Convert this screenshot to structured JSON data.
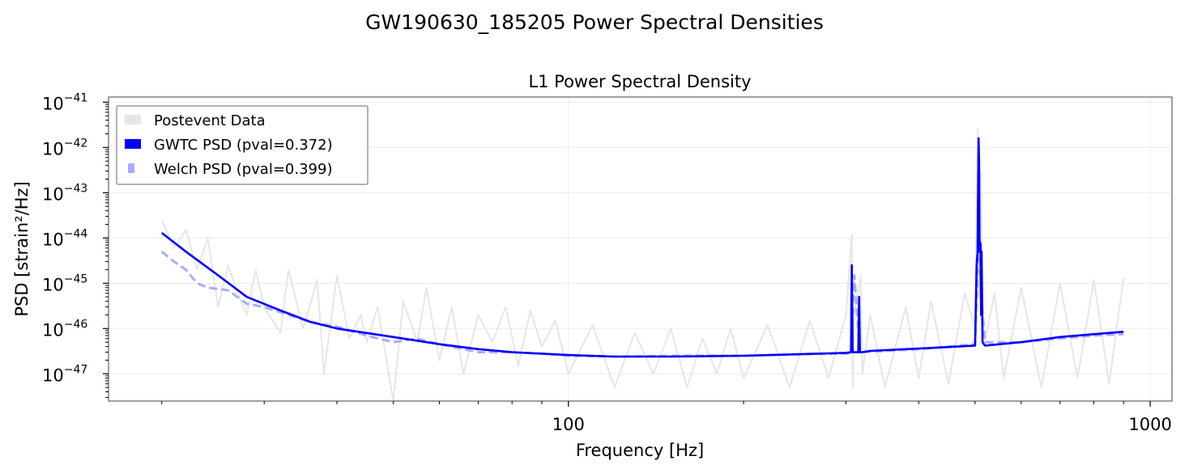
{
  "figure": {
    "suptitle": "GW190630_185205 Power Spectral Densities"
  },
  "chart_data": {
    "type": "line",
    "title": "L1 Power Spectral Density",
    "xlabel": "Frequency [Hz]",
    "ylabel": "PSD [strain²/Hz]",
    "xscale": "log",
    "yscale": "log",
    "xlim": [
      16.2,
      1090
    ],
    "ylim": [
      2.5e-48,
      1.3e-41
    ],
    "grid": true,
    "legend_position": "top-left",
    "x_ticks": [
      {
        "value": 100,
        "label": "100"
      },
      {
        "value": 1000,
        "label": "1000"
      }
    ],
    "y_ticks": [
      {
        "value": 1e-47,
        "base": "10",
        "exp": "−47"
      },
      {
        "value": 1e-46,
        "base": "10",
        "exp": "−46"
      },
      {
        "value": 1e-45,
        "base": "10",
        "exp": "−45"
      },
      {
        "value": 1e-44,
        "base": "10",
        "exp": "−44"
      },
      {
        "value": 1e-43,
        "base": "10",
        "exp": "−43"
      },
      {
        "value": 1e-42,
        "base": "10",
        "exp": "−42"
      },
      {
        "value": 1e-41,
        "base": "10",
        "exp": "−41"
      }
    ],
    "series": [
      {
        "name": "Postevent Data",
        "color": "#e6e6e6",
        "style": "solid",
        "x": [
          20,
          21,
          22,
          23,
          24,
          25,
          26,
          27,
          28,
          29,
          30,
          32,
          33,
          35,
          37,
          38,
          40,
          42,
          44,
          45,
          47,
          50,
          52,
          55,
          57,
          60,
          63,
          66,
          70,
          74,
          78,
          82,
          86,
          90,
          95,
          100,
          110,
          120,
          130,
          140,
          150,
          160,
          170,
          180,
          190,
          200,
          220,
          240,
          260,
          280,
          300,
          307,
          308,
          310,
          318,
          320,
          330,
          350,
          380,
          400,
          420,
          450,
          480,
          500,
          505,
          508,
          512,
          515,
          520,
          540,
          560,
          600,
          650,
          700,
          750,
          800,
          850,
          900
        ],
        "y": [
          2.5e-44,
          6e-45,
          1.5e-44,
          2e-45,
          1e-44,
          3e-46,
          2.5e-45,
          6e-46,
          2e-46,
          2e-45,
          3e-46,
          8e-47,
          2e-45,
          1e-46,
          1.2e-45,
          1e-47,
          1.5e-45,
          6e-47,
          2e-46,
          5e-47,
          3e-46,
          2.5e-48,
          4e-46,
          5e-47,
          8e-46,
          2e-47,
          3e-46,
          1e-47,
          2e-46,
          5e-47,
          3e-46,
          1.5e-47,
          2.5e-46,
          4e-47,
          1.5e-46,
          1e-47,
          1.2e-46,
          5e-48,
          8e-47,
          1e-47,
          1e-46,
          5e-48,
          6e-47,
          1e-47,
          1e-46,
          8e-48,
          1.2e-46,
          5e-48,
          1.5e-46,
          8e-48,
          2e-46,
          1.2e-44,
          5e-48,
          2e-46,
          1.5e-45,
          1e-47,
          2e-46,
          5e-48,
          3e-46,
          8e-48,
          4e-46,
          6e-48,
          6e-46,
          1e-46,
          2.5e-42,
          5e-46,
          3e-43,
          2e-46,
          5e-47,
          6e-46,
          8e-48,
          8e-46,
          5e-48,
          1e-45,
          8e-48,
          1.2e-45,
          6e-48,
          1.3e-45
        ]
      },
      {
        "name": "GWTC PSD (pval=0.372)",
        "color": "#0000ff",
        "style": "solid",
        "x": [
          20,
          22,
          25,
          28,
          32,
          36,
          40,
          50,
          60,
          70,
          80,
          100,
          120,
          150,
          200,
          250,
          300,
          306,
          307,
          308,
          309,
          315,
          316,
          317,
          318,
          319,
          330,
          400,
          500,
          503,
          505,
          507,
          508,
          509,
          510,
          511,
          512,
          513,
          515,
          520,
          600,
          700,
          800,
          900
        ],
        "y": [
          1.3e-44,
          5e-45,
          1.5e-45,
          5e-46,
          2.5e-46,
          1.4e-46,
          1e-46,
          6.5e-47,
          4.5e-47,
          3.5e-47,
          3e-47,
          2.6e-47,
          2.4e-47,
          2.4e-47,
          2.5e-47,
          2.7e-47,
          2.9e-47,
          3e-47,
          2.5e-45,
          3e-47,
          3e-47,
          3e-47,
          5e-46,
          3e-47,
          3e-47,
          3e-47,
          3.2e-47,
          3.6e-47,
          4.2e-47,
          2.5e-45,
          5e-45,
          1.6e-42,
          5e-43,
          5e-45,
          8e-45,
          7e-45,
          2e-46,
          5e-45,
          5e-47,
          4.2e-47,
          5e-47,
          6.5e-47,
          7.5e-47,
          8.5e-47
        ]
      },
      {
        "name": "Welch PSD (pval=0.399)",
        "color": "#aaaaff",
        "style": "dashed",
        "x": [
          20,
          21,
          22,
          23,
          24,
          26,
          28,
          30,
          33,
          36,
          40,
          45,
          50,
          55,
          60,
          70,
          80,
          90,
          100,
          120,
          150,
          200,
          250,
          300,
          306,
          310,
          317,
          318,
          320,
          400,
          500,
          508,
          509,
          512,
          520,
          600,
          700,
          800,
          900
        ],
        "y": [
          5e-45,
          3e-45,
          2e-45,
          1e-45,
          8e-46,
          7e-46,
          3.5e-46,
          3e-46,
          2e-46,
          1.4e-46,
          1.1e-46,
          7e-47,
          5e-47,
          6e-47,
          4.5e-47,
          3e-47,
          3e-47,
          2.8e-47,
          2.5e-47,
          2.4e-47,
          2.5e-47,
          2.5e-47,
          2.7e-47,
          2.8e-47,
          2.8e-47,
          1.5e-45,
          2.8e-47,
          3e-47,
          3e-47,
          3.5e-47,
          4.5e-47,
          1.5e-44,
          5e-45,
          6e-46,
          5e-47,
          5e-47,
          6e-47,
          7e-47,
          7.5e-47
        ]
      }
    ]
  }
}
